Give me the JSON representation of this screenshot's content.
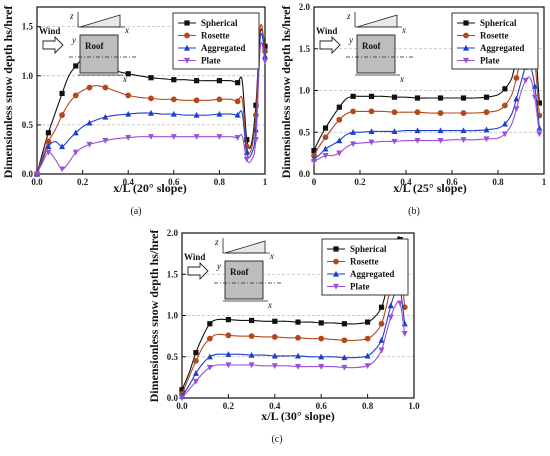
{
  "legend_labels": [
    "Spherical",
    "Rosette",
    "Aggregated",
    "Plate"
  ],
  "series_colors": {
    "Spherical": "#111111",
    "Rosette": "#b5471b",
    "Aggregated": "#1a3fd0",
    "Plate": "#9b4fd6"
  },
  "series_markers": {
    "Spherical": "square",
    "Rosette": "circle",
    "Aggregated": "triangle-up",
    "Plate": "triangle-down"
  },
  "inset": {
    "wind": "Wind",
    "roof": "Roof",
    "z": "z",
    "y": "y",
    "x": "x"
  },
  "ylabel": "Dimensionless snow depth hs/href",
  "chart_data": [
    {
      "type": "line",
      "panel": "(a)",
      "xlabel": "x/L (20° slope)",
      "ylabel": "Dimensionless snow depth hs/href",
      "xlim": [
        0,
        1.0
      ],
      "ylim": [
        0,
        1.7
      ],
      "xticks": [
        "0.0",
        "0.2",
        "0.4",
        "0.6",
        "0.8",
        "1"
      ],
      "yticks": [
        "0.0",
        "0.5",
        "1.0",
        "1.5"
      ],
      "grid": "horizontal dashed",
      "legend": "top-right",
      "series": [
        {
          "name": "Spherical",
          "x": [
            0,
            0.02,
            0.05,
            0.08,
            0.11,
            0.14,
            0.17,
            0.2,
            0.23,
            0.26,
            0.3,
            0.35,
            0.4,
            0.45,
            0.5,
            0.55,
            0.6,
            0.65,
            0.7,
            0.75,
            0.8,
            0.85,
            0.88,
            0.9,
            0.92,
            0.94,
            0.96,
            0.98,
            1.0
          ],
          "y": [
            0,
            0.18,
            0.42,
            0.62,
            0.82,
            1.0,
            1.1,
            1.17,
            1.2,
            1.18,
            1.12,
            1.05,
            1.02,
            1.0,
            0.98,
            0.97,
            0.96,
            0.96,
            0.95,
            0.95,
            0.95,
            0.95,
            0.93,
            0.95,
            0.35,
            0.3,
            0.7,
            1.45,
            1.3
          ]
        },
        {
          "name": "Rosette",
          "x": [
            0,
            0.02,
            0.05,
            0.08,
            0.11,
            0.14,
            0.17,
            0.2,
            0.23,
            0.26,
            0.3,
            0.35,
            0.4,
            0.45,
            0.5,
            0.55,
            0.6,
            0.65,
            0.7,
            0.75,
            0.8,
            0.85,
            0.88,
            0.9,
            0.92,
            0.94,
            0.96,
            0.98,
            1.0
          ],
          "y": [
            0,
            0.15,
            0.33,
            0.45,
            0.6,
            0.72,
            0.8,
            0.85,
            0.88,
            0.9,
            0.88,
            0.84,
            0.8,
            0.78,
            0.77,
            0.76,
            0.76,
            0.75,
            0.75,
            0.75,
            0.76,
            0.76,
            0.74,
            0.76,
            0.28,
            0.25,
            0.6,
            1.5,
            1.25
          ]
        },
        {
          "name": "Aggregated",
          "x": [
            0,
            0.02,
            0.05,
            0.08,
            0.11,
            0.14,
            0.17,
            0.2,
            0.23,
            0.26,
            0.3,
            0.35,
            0.4,
            0.45,
            0.5,
            0.55,
            0.6,
            0.65,
            0.7,
            0.75,
            0.8,
            0.85,
            0.88,
            0.9,
            0.92,
            0.94,
            0.96,
            0.98,
            1.0
          ],
          "y": [
            0,
            0.12,
            0.28,
            0.33,
            0.28,
            0.35,
            0.42,
            0.48,
            0.52,
            0.55,
            0.58,
            0.6,
            0.61,
            0.62,
            0.62,
            0.61,
            0.61,
            0.6,
            0.6,
            0.6,
            0.61,
            0.61,
            0.6,
            0.62,
            0.22,
            0.2,
            0.45,
            1.4,
            1.2
          ]
        },
        {
          "name": "Plate",
          "x": [
            0,
            0.02,
            0.05,
            0.08,
            0.11,
            0.14,
            0.17,
            0.2,
            0.23,
            0.26,
            0.3,
            0.35,
            0.4,
            0.45,
            0.5,
            0.55,
            0.6,
            0.65,
            0.7,
            0.75,
            0.8,
            0.85,
            0.88,
            0.9,
            0.92,
            0.94,
            0.96,
            0.98,
            1.0
          ],
          "y": [
            0,
            0.1,
            0.22,
            0.15,
            0.05,
            0.12,
            0.22,
            0.27,
            0.3,
            0.32,
            0.34,
            0.36,
            0.37,
            0.38,
            0.38,
            0.38,
            0.38,
            0.38,
            0.38,
            0.38,
            0.38,
            0.38,
            0.37,
            0.39,
            0.15,
            0.14,
            0.35,
            1.3,
            1.15
          ]
        }
      ]
    },
    {
      "type": "line",
      "panel": "(b)",
      "xlabel": "x/L (25° slope)",
      "ylabel": "Dimensionless snow depth hs/href",
      "xlim": [
        0,
        1.0
      ],
      "ylim": [
        0,
        2.0
      ],
      "xticks": [
        "0",
        "0.2",
        "0.4",
        "0.6",
        "0.8",
        "1"
      ],
      "yticks": [
        "0.0",
        "0.5",
        "1.0",
        "1.5",
        "2.0"
      ],
      "grid": "horizontal dashed",
      "legend": "top-right",
      "series": [
        {
          "name": "Spherical",
          "x": [
            0,
            0.02,
            0.05,
            0.08,
            0.11,
            0.14,
            0.17,
            0.2,
            0.25,
            0.3,
            0.35,
            0.4,
            0.45,
            0.5,
            0.55,
            0.6,
            0.65,
            0.7,
            0.75,
            0.8,
            0.83,
            0.86,
            0.88,
            0.9,
            0.92,
            0.94,
            0.96,
            0.98
          ],
          "y": [
            0.28,
            0.4,
            0.55,
            0.68,
            0.8,
            0.9,
            0.93,
            0.93,
            0.93,
            0.93,
            0.92,
            0.92,
            0.91,
            0.91,
            0.91,
            0.91,
            0.91,
            0.91,
            0.92,
            0.95,
            1.02,
            1.15,
            1.4,
            1.7,
            1.88,
            1.9,
            1.6,
            0.85
          ]
        },
        {
          "name": "Rosette",
          "x": [
            0,
            0.02,
            0.05,
            0.08,
            0.11,
            0.14,
            0.17,
            0.2,
            0.25,
            0.3,
            0.35,
            0.4,
            0.45,
            0.5,
            0.55,
            0.6,
            0.65,
            0.7,
            0.75,
            0.8,
            0.83,
            0.86,
            0.88,
            0.9,
            0.92,
            0.94,
            0.96,
            0.98
          ],
          "y": [
            0.22,
            0.32,
            0.44,
            0.55,
            0.65,
            0.72,
            0.75,
            0.75,
            0.75,
            0.75,
            0.74,
            0.74,
            0.74,
            0.73,
            0.73,
            0.73,
            0.73,
            0.73,
            0.74,
            0.76,
            0.82,
            0.95,
            1.15,
            1.4,
            1.6,
            1.65,
            1.35,
            0.7
          ]
        },
        {
          "name": "Aggregated",
          "x": [
            0,
            0.02,
            0.05,
            0.08,
            0.11,
            0.14,
            0.17,
            0.2,
            0.25,
            0.3,
            0.35,
            0.4,
            0.45,
            0.5,
            0.55,
            0.6,
            0.65,
            0.7,
            0.75,
            0.8,
            0.83,
            0.86,
            0.88,
            0.9,
            0.92,
            0.94,
            0.96,
            0.98
          ],
          "y": [
            0.18,
            0.22,
            0.3,
            0.35,
            0.4,
            0.47,
            0.5,
            0.5,
            0.51,
            0.51,
            0.51,
            0.52,
            0.52,
            0.52,
            0.52,
            0.52,
            0.52,
            0.52,
            0.53,
            0.55,
            0.6,
            0.72,
            0.9,
            1.1,
            1.28,
            1.3,
            1.05,
            0.55
          ]
        },
        {
          "name": "Plate",
          "x": [
            0,
            0.02,
            0.05,
            0.08,
            0.11,
            0.14,
            0.17,
            0.2,
            0.25,
            0.3,
            0.35,
            0.4,
            0.45,
            0.5,
            0.55,
            0.6,
            0.65,
            0.7,
            0.75,
            0.8,
            0.83,
            0.86,
            0.88,
            0.9,
            0.92,
            0.94,
            0.96,
            0.98
          ],
          "y": [
            0.15,
            0.18,
            0.22,
            0.22,
            0.25,
            0.32,
            0.36,
            0.37,
            0.38,
            0.39,
            0.39,
            0.4,
            0.4,
            0.4,
            0.4,
            0.41,
            0.41,
            0.41,
            0.42,
            0.43,
            0.48,
            0.6,
            0.78,
            0.98,
            1.12,
            1.15,
            0.92,
            0.48
          ]
        }
      ]
    },
    {
      "type": "line",
      "panel": "(c)",
      "xlabel": "x/L (30° slope)",
      "ylabel": "Dimensionless snow depth hs/href",
      "xlim": [
        0,
        1.0
      ],
      "ylim": [
        0,
        2.0
      ],
      "xticks": [
        "0.0",
        "0.2",
        "0.4",
        "0.6",
        "0.8",
        "1.0"
      ],
      "yticks": [
        "0.0",
        "0.5",
        "1.0",
        "1.5",
        "2.0"
      ],
      "grid": "horizontal dashed",
      "legend": "top-right",
      "series": [
        {
          "name": "Spherical",
          "x": [
            0,
            0.03,
            0.06,
            0.09,
            0.12,
            0.15,
            0.2,
            0.25,
            0.3,
            0.35,
            0.4,
            0.45,
            0.5,
            0.55,
            0.6,
            0.65,
            0.7,
            0.75,
            0.8,
            0.83,
            0.86,
            0.88,
            0.9,
            0.92,
            0.94,
            0.96
          ],
          "y": [
            0.1,
            0.3,
            0.55,
            0.75,
            0.9,
            0.95,
            0.95,
            0.94,
            0.94,
            0.93,
            0.93,
            0.93,
            0.92,
            0.92,
            0.91,
            0.91,
            0.9,
            0.9,
            0.92,
            0.98,
            1.1,
            1.3,
            1.6,
            1.85,
            1.92,
            1.3
          ]
        },
        {
          "name": "Rosette",
          "x": [
            0,
            0.03,
            0.06,
            0.09,
            0.12,
            0.15,
            0.2,
            0.25,
            0.3,
            0.35,
            0.4,
            0.45,
            0.5,
            0.55,
            0.6,
            0.65,
            0.7,
            0.75,
            0.8,
            0.83,
            0.86,
            0.88,
            0.9,
            0.92,
            0.94,
            0.96
          ],
          "y": [
            0.05,
            0.25,
            0.45,
            0.62,
            0.72,
            0.77,
            0.76,
            0.75,
            0.75,
            0.74,
            0.74,
            0.73,
            0.73,
            0.72,
            0.72,
            0.71,
            0.7,
            0.7,
            0.72,
            0.78,
            0.9,
            1.1,
            1.35,
            1.58,
            1.65,
            1.1
          ]
        },
        {
          "name": "Aggregated",
          "x": [
            0,
            0.03,
            0.06,
            0.09,
            0.12,
            0.15,
            0.2,
            0.25,
            0.3,
            0.35,
            0.4,
            0.45,
            0.5,
            0.55,
            0.6,
            0.65,
            0.7,
            0.75,
            0.8,
            0.83,
            0.86,
            0.88,
            0.9,
            0.92,
            0.94,
            0.96
          ],
          "y": [
            0.02,
            0.15,
            0.3,
            0.42,
            0.5,
            0.53,
            0.53,
            0.53,
            0.52,
            0.52,
            0.51,
            0.51,
            0.51,
            0.5,
            0.5,
            0.5,
            0.49,
            0.49,
            0.51,
            0.58,
            0.7,
            0.9,
            1.12,
            1.28,
            1.32,
            0.9
          ]
        },
        {
          "name": "Plate",
          "x": [
            0,
            0.03,
            0.06,
            0.09,
            0.12,
            0.15,
            0.2,
            0.25,
            0.3,
            0.35,
            0.4,
            0.45,
            0.5,
            0.55,
            0.6,
            0.65,
            0.7,
            0.75,
            0.8,
            0.83,
            0.86,
            0.88,
            0.9,
            0.92,
            0.94,
            0.96
          ],
          "y": [
            0.0,
            0.1,
            0.2,
            0.3,
            0.37,
            0.4,
            0.4,
            0.4,
            0.4,
            0.39,
            0.39,
            0.39,
            0.38,
            0.38,
            0.38,
            0.38,
            0.37,
            0.37,
            0.39,
            0.45,
            0.58,
            0.78,
            0.98,
            1.12,
            1.15,
            0.78
          ]
        }
      ]
    }
  ]
}
